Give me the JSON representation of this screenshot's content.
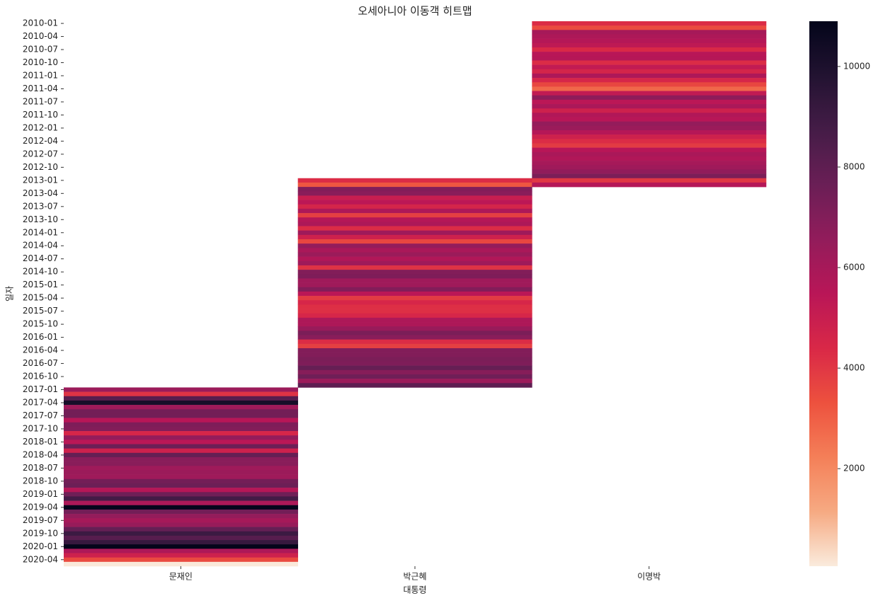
{
  "chart_data": {
    "type": "heatmap",
    "title": "오세아니아 이동객 히트맵",
    "xlabel": "대통령",
    "ylabel": "일자",
    "y": [
      "2010-01",
      null,
      null,
      "2010-04",
      null,
      null,
      "2010-07",
      null,
      null,
      "2010-10",
      null,
      null,
      "2011-01",
      null,
      null,
      "2011-04",
      null,
      null,
      "2011-07",
      null,
      null,
      "2011-10",
      null,
      null,
      "2012-01",
      null,
      null,
      "2012-04",
      null,
      null,
      "2012-07",
      null,
      null,
      "2012-10",
      null,
      null,
      "2013-01",
      null,
      null,
      "2013-04",
      null,
      null,
      "2013-07",
      null,
      null,
      "2013-10",
      null,
      null,
      "2014-01",
      null,
      null,
      "2014-04",
      null,
      null,
      "2014-07",
      null,
      null,
      "2014-10",
      null,
      null,
      "2015-01",
      null,
      null,
      "2015-04",
      null,
      null,
      "2015-07",
      null,
      null,
      "2015-10",
      null,
      null,
      "2016-01",
      null,
      null,
      "2016-04",
      null,
      null,
      "2016-07",
      null,
      null,
      "2016-10",
      null,
      null,
      "2017-01",
      null,
      null,
      "2017-04",
      null,
      null,
      "2017-07",
      null,
      null,
      "2017-10",
      null,
      null,
      "2018-01",
      null,
      null,
      "2018-04",
      null,
      null,
      "2018-07",
      null,
      null,
      "2018-10",
      null,
      null,
      "2019-01",
      null,
      null,
      "2019-04",
      null,
      null,
      "2019-07",
      null,
      null,
      "2019-10",
      null,
      null,
      "2020-01",
      null,
      null,
      "2020-04",
      null
    ],
    "series": [
      {
        "name": "문재인",
        "values": [
          null,
          null,
          null,
          null,
          null,
          null,
          null,
          null,
          null,
          null,
          null,
          null,
          null,
          null,
          null,
          null,
          null,
          null,
          null,
          null,
          null,
          null,
          null,
          null,
          null,
          null,
          null,
          null,
          null,
          null,
          null,
          null,
          null,
          null,
          null,
          null,
          null,
          null,
          null,
          null,
          null,
          null,
          null,
          null,
          null,
          null,
          null,
          null,
          null,
          null,
          null,
          null,
          null,
          null,
          null,
          null,
          null,
          null,
          null,
          null,
          null,
          null,
          null,
          null,
          null,
          null,
          null,
          null,
          null,
          null,
          null,
          null,
          null,
          null,
          null,
          null,
          null,
          null,
          null,
          null,
          null,
          null,
          null,
          null,
          6300,
          4100,
          8200,
          10200,
          6200,
          7400,
          7400,
          5500,
          7100,
          7000,
          4500,
          6500,
          5400,
          7600,
          4800,
          7800,
          6800,
          6800,
          6200,
          6300,
          6200,
          7400,
          7600,
          5600,
          7500,
          8800,
          5800,
          10800,
          7400,
          6500,
          6000,
          6400,
          7800,
          9000,
          8200,
          9200,
          10900,
          5800,
          4800,
          3500,
          100
        ]
      },
      {
        "name": "박근혜",
        "values": [
          null,
          null,
          null,
          null,
          null,
          null,
          null,
          null,
          null,
          null,
          null,
          null,
          null,
          null,
          null,
          null,
          null,
          null,
          null,
          null,
          null,
          null,
          null,
          null,
          null,
          null,
          null,
          null,
          null,
          null,
          null,
          null,
          null,
          null,
          null,
          null,
          4300,
          3200,
          7000,
          6800,
          5000,
          5400,
          4600,
          5800,
          3800,
          5600,
          5800,
          4300,
          6200,
          4800,
          3600,
          6500,
          5900,
          6300,
          5700,
          6200,
          4100,
          7000,
          7100,
          6200,
          6200,
          7000,
          5400,
          3900,
          4500,
          4200,
          4200,
          4500,
          5800,
          5800,
          6400,
          7200,
          6800,
          4300,
          3800,
          7000,
          7000,
          7200,
          7100,
          7800,
          6900,
          7500,
          6300,
          8000,
          null,
          null,
          null,
          null,
          null,
          null,
          null,
          null,
          null,
          null,
          null,
          null,
          null,
          null,
          null,
          null,
          null,
          null,
          null,
          null,
          null,
          null,
          null,
          null,
          null,
          null,
          null,
          null,
          null,
          null,
          null,
          null,
          null,
          null,
          null,
          null,
          null,
          null,
          null,
          null,
          null
        ]
      },
      {
        "name": "이명박",
        "values": [
          4300,
          3500,
          6000,
          5800,
          5600,
          5300,
          4400,
          5500,
          5600,
          4300,
          5200,
          4600,
          5800,
          4500,
          3600,
          2800,
          5200,
          6700,
          5400,
          5900,
          4800,
          5700,
          5500,
          6500,
          6300,
          5600,
          4800,
          4300,
          3900,
          5500,
          5900,
          5700,
          6000,
          6200,
          6600,
          7200,
          4000,
          5600,
          null,
          null,
          null,
          null,
          null,
          null,
          null,
          null,
          null,
          null,
          null,
          null,
          null,
          null,
          null,
          null,
          null,
          null,
          null,
          null,
          null,
          null,
          null,
          null,
          null,
          null,
          null,
          null,
          null,
          null,
          null,
          null,
          null,
          null,
          null,
          null,
          null,
          null,
          null,
          null,
          null,
          null,
          null,
          null,
          null,
          null,
          null,
          null,
          null,
          null,
          null,
          null,
          null,
          null,
          null,
          null,
          null,
          null,
          null,
          null,
          null,
          null,
          null,
          null,
          null,
          null,
          null,
          null,
          null,
          null,
          null,
          null,
          null,
          null,
          null,
          null,
          null,
          null,
          null,
          null,
          null,
          null,
          null,
          null,
          null,
          null,
          null
        ]
      }
    ],
    "colormap": "rocket_r",
    "zlim": [
      60,
      10900
    ],
    "zticks": [
      2000,
      4000,
      6000,
      8000,
      10000
    ]
  }
}
